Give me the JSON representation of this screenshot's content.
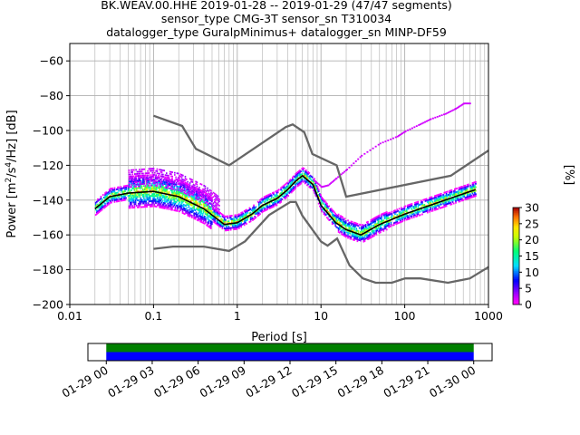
{
  "title_lines": [
    "BK.WEAV.00.HHE   2019-01-28 -- 2019-01-29  (47/47 segments)",
    "sensor_type CMG-3T sensor_sn T310034",
    "datalogger_type GuralpMinimus+ datalogger_sn MINP-DF59"
  ],
  "chart_data": {
    "type": "heatmap",
    "title": "BK.WEAV.00.HHE   2019-01-28 -- 2019-01-29  (47/47 segments)",
    "subtitle": [
      "sensor_type CMG-3T sensor_sn T310034",
      "datalogger_type GuralpMinimus+ datalogger_sn MINP-DF59"
    ],
    "xlabel": "Period [s]",
    "ylabel": "Power [m²/s⁴/Hz] [dB]",
    "ylabel_parts": {
      "pre": "Power [m",
      "sup1": "2",
      "mid": "/s",
      "sup2": "4",
      "post": "/Hz] [dB]"
    },
    "x_scale": "log",
    "xlim": [
      0.01,
      1000
    ],
    "ylim": [
      -200,
      -50
    ],
    "x_ticks": [
      {
        "value": 0.01,
        "label": "0.01"
      },
      {
        "value": 0.1,
        "label": "0.1"
      },
      {
        "value": 1,
        "label": "1"
      },
      {
        "value": 10,
        "label": "10"
      },
      {
        "value": 100,
        "label": "100"
      },
      {
        "value": 1000,
        "label": "1000"
      }
    ],
    "y_ticks": [
      -200,
      -180,
      -160,
      -140,
      -120,
      -100,
      -80,
      -60
    ],
    "grid": true,
    "colorbar": {
      "label": "[%]",
      "min": 0,
      "max": 30,
      "ticks": [
        0,
        5,
        10,
        15,
        20,
        25,
        30
      ],
      "colormap": "pqlx"
    },
    "series": [
      {
        "role": "new_high_noise_model",
        "color": "#666666",
        "x": [
          0.1,
          0.22,
          0.32,
          0.8,
          3.8,
          4.6,
          6.3,
          7.9,
          15.4,
          20,
          354.8,
          1000
        ],
        "y": [
          -91.5,
          -97.4,
          -110.5,
          -120,
          -98,
          -96.5,
          -101,
          -113.5,
          -120,
          -138,
          -126,
          -111.5
        ]
      },
      {
        "role": "new_low_noise_model",
        "color": "#666666",
        "x": [
          0.1,
          0.17,
          0.4,
          0.8,
          1.24,
          2.4,
          4.3,
          5,
          6,
          10,
          12,
          15.6,
          21.9,
          31.6,
          45,
          70,
          101,
          154,
          328,
          600,
          1000
        ],
        "y": [
          -168,
          -166.7,
          -166.7,
          -169.2,
          -163.7,
          -148.6,
          -141.1,
          -141.1,
          -149,
          -163.8,
          -166.2,
          -162.1,
          -177.5,
          -185,
          -187.5,
          -187.5,
          -185,
          -185,
          -187.5,
          -185,
          -178.5
        ]
      },
      {
        "role": "mode",
        "color": "#000000",
        "x": [
          0.02,
          0.03,
          0.05,
          0.1,
          0.2,
          0.4,
          0.7,
          1,
          1.5,
          2,
          3,
          4,
          5,
          6,
          8,
          10,
          15,
          20,
          30,
          50,
          100,
          200,
          400,
          700
        ],
        "y": [
          -145,
          -138,
          -136,
          -135,
          -138,
          -145,
          -154,
          -153,
          -148,
          -143,
          -139,
          -134,
          -129,
          -126,
          -131,
          -143,
          -153,
          -157,
          -160,
          -154,
          -148,
          -143,
          -138,
          -134
        ]
      }
    ],
    "scatter_bands": [
      {
        "color_pct": 2,
        "y_offset": 16,
        "x_range": [
          0.05,
          0.6
        ]
      },
      {
        "color_pct": 8,
        "y_offset": -5,
        "x_range": [
          0.02,
          1.5
        ]
      },
      {
        "color_pct": 20,
        "y_offset": 3,
        "x_range": [
          0.02,
          700
        ]
      }
    ],
    "outlier_points": {
      "color_pct": 2,
      "x": [
        8,
        10,
        12,
        15,
        20,
        30,
        50,
        80,
        100,
        150,
        200,
        300,
        400,
        500,
        600
      ],
      "y": [
        -128,
        -132,
        -131,
        -127,
        -122,
        -114,
        -107,
        -103,
        -100,
        -96,
        -93,
        -90,
        -87,
        -84,
        -84
      ]
    }
  },
  "timeline": {
    "ticks": [
      {
        "hour": 0,
        "label": "01-29 00"
      },
      {
        "hour": 3,
        "label": "01-29 03"
      },
      {
        "hour": 6,
        "label": "01-29 06"
      },
      {
        "hour": 9,
        "label": "01-29 09"
      },
      {
        "hour": 12,
        "label": "01-29 12"
      },
      {
        "hour": 15,
        "label": "01-29 15"
      },
      {
        "hour": 18,
        "label": "01-29 18"
      },
      {
        "hour": 21,
        "label": "01-29 21"
      },
      {
        "hour": 24,
        "label": "01-30 00"
      }
    ],
    "range_hours": [
      -1.2,
      25.2
    ],
    "data_span_hours": [
      0,
      24
    ],
    "bar_top_color": "#008000",
    "bar_bottom_color": "#0000ff"
  }
}
